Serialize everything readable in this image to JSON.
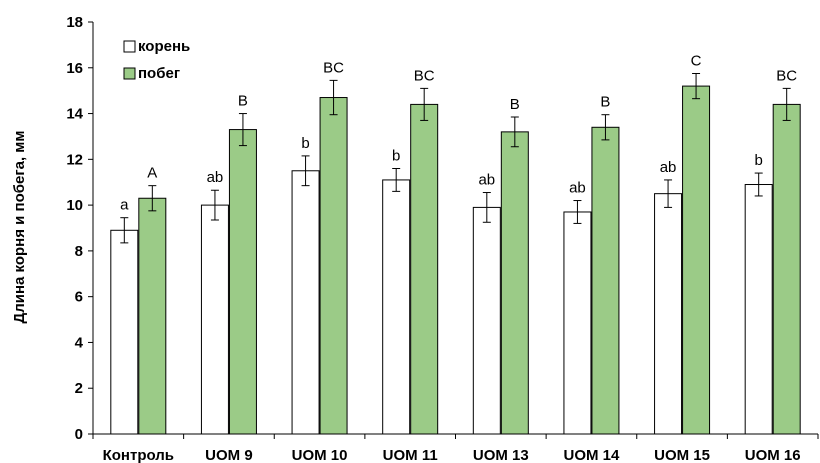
{
  "chart_data": {
    "type": "bar",
    "title": "",
    "xlabel": "",
    "ylabel": "Длина корня и побега, мм",
    "ylim": [
      0,
      18
    ],
    "yticks": [
      0,
      2,
      4,
      6,
      8,
      10,
      12,
      14,
      16,
      18
    ],
    "grid": false,
    "legend_position": "top-left",
    "categories": [
      "Контроль",
      "UOM 9",
      "UOM 10",
      "UOM 11",
      "UOM 13",
      "UOM 14",
      "UOM 15",
      "UOM 16"
    ],
    "series": [
      {
        "name": "корень",
        "color": "#ffffff",
        "values": [
          8.9,
          10.0,
          11.5,
          11.1,
          9.9,
          9.7,
          10.5,
          10.9
        ],
        "errors": [
          0.55,
          0.65,
          0.65,
          0.5,
          0.65,
          0.5,
          0.6,
          0.5
        ],
        "labels": [
          "a",
          "ab",
          "b",
          "b",
          "ab",
          "ab",
          "ab",
          "b"
        ]
      },
      {
        "name": "побег",
        "color": "#9bcb87",
        "values": [
          10.3,
          13.3,
          14.7,
          14.4,
          13.2,
          13.4,
          15.2,
          14.4
        ],
        "errors": [
          0.55,
          0.7,
          0.75,
          0.7,
          0.65,
          0.55,
          0.55,
          0.7
        ],
        "labels": [
          "A",
          "B",
          "BC",
          "BC",
          "B",
          "B",
          "C",
          "BC"
        ]
      }
    ]
  }
}
